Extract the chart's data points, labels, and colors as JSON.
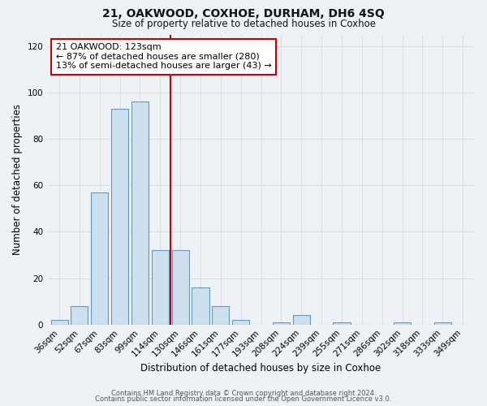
{
  "title": "21, OAKWOOD, COXHOE, DURHAM, DH6 4SQ",
  "subtitle": "Size of property relative to detached houses in Coxhoe",
  "xlabel": "Distribution of detached houses by size in Coxhoe",
  "ylabel": "Number of detached properties",
  "bar_color": "#cce0f0",
  "bar_edge_color": "#6699bb",
  "categories": [
    "36sqm",
    "52sqm",
    "67sqm",
    "83sqm",
    "99sqm",
    "114sqm",
    "130sqm",
    "146sqm",
    "161sqm",
    "177sqm",
    "193sqm",
    "208sqm",
    "224sqm",
    "239sqm",
    "255sqm",
    "271sqm",
    "286sqm",
    "302sqm",
    "318sqm",
    "333sqm",
    "349sqm"
  ],
  "values": [
    2,
    8,
    57,
    93,
    96,
    32,
    32,
    16,
    8,
    2,
    0,
    1,
    4,
    0,
    1,
    0,
    0,
    1,
    0,
    1,
    0
  ],
  "ylim": [
    0,
    125
  ],
  "yticks": [
    0,
    20,
    40,
    60,
    80,
    100,
    120
  ],
  "red_line_x": 5.5,
  "annotation_title": "21 OAKWOOD: 123sqm",
  "annotation_line1": "← 87% of detached houses are smaller (280)",
  "annotation_line2": "13% of semi-detached houses are larger (43) →",
  "annotation_box_color": "#ffffff",
  "annotation_box_edge_color": "#cc0000",
  "footer_line1": "Contains HM Land Registry data © Crown copyright and database right 2024.",
  "footer_line2": "Contains public sector information licensed under the Open Government Licence v3.0.",
  "grid_color": "#dddddd",
  "background_color": "#eef2f7"
}
